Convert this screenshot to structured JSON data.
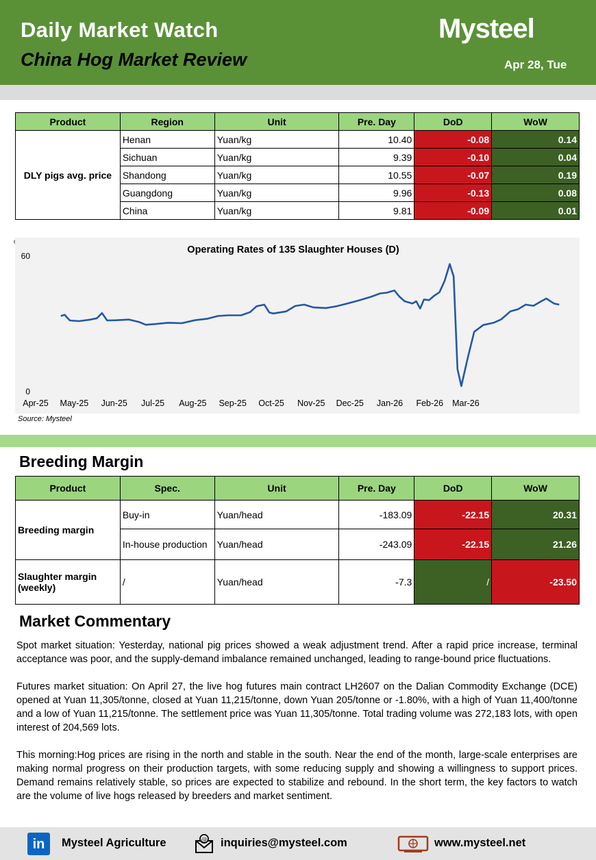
{
  "header": {
    "title": "Daily Market Watch",
    "subtitle": "China Hog Market Review",
    "brand": "Mysteel",
    "date": "Apr 28, Tue"
  },
  "price_table": {
    "headers": [
      "Product",
      "Region",
      "Unit",
      "Pre. Day",
      "DoD",
      "WoW"
    ],
    "product": "DLY pigs avg. price",
    "rows": [
      {
        "region": "Henan",
        "unit": "Yuan/kg",
        "pre": "10.40",
        "dod": "-0.08",
        "wow": "0.14"
      },
      {
        "region": "Sichuan",
        "unit": "Yuan/kg",
        "pre": "9.39",
        "dod": "-0.10",
        "wow": "0.04"
      },
      {
        "region": "Shandong",
        "unit": "Yuan/kg",
        "pre": "10.55",
        "dod": "-0.07",
        "wow": "0.19"
      },
      {
        "region": "Guangdong",
        "unit": "Yuan/kg",
        "pre": "9.96",
        "dod": "-0.13",
        "wow": "0.08"
      },
      {
        "region": "China",
        "unit": "Yuan/kg",
        "pre": "9.81",
        "dod": "-0.09",
        "wow": "0.01"
      }
    ]
  },
  "chart_data": {
    "type": "line",
    "title": "Operating Rates of 135 Slaughter Houses (D)",
    "ylabel": "%",
    "ylim": [
      0,
      60
    ],
    "yticks": [
      "0",
      "60"
    ],
    "xticks": [
      "Apr-25",
      "May-25",
      "Jun-25",
      "Jul-25",
      "Aug-25",
      "Sep-25",
      "Oct-25",
      "Nov-25",
      "Dec-25",
      "Jan-26",
      "Feb-26",
      "Mar-26"
    ],
    "series": [
      {
        "color": "#2458a6",
        "points": [
          [
            "2025-04-28",
            33.5
          ],
          [
            "2025-05-01",
            34
          ],
          [
            "2025-05-05",
            31.5
          ],
          [
            "2025-05-12",
            31.2
          ],
          [
            "2025-05-20",
            31.8
          ],
          [
            "2025-05-26",
            32.5
          ],
          [
            "2025-05-30",
            34.8
          ],
          [
            "2025-06-03",
            31.5
          ],
          [
            "2025-06-10",
            31.6
          ],
          [
            "2025-06-20",
            31.9
          ],
          [
            "2025-06-28",
            30.8
          ],
          [
            "2025-07-03",
            29.6
          ],
          [
            "2025-07-10",
            29.9
          ],
          [
            "2025-07-20",
            30.5
          ],
          [
            "2025-07-31",
            30.3
          ],
          [
            "2025-08-10",
            31.6
          ],
          [
            "2025-08-20",
            32.3
          ],
          [
            "2025-08-28",
            33.5
          ],
          [
            "2025-09-05",
            33.8
          ],
          [
            "2025-09-15",
            33.8
          ],
          [
            "2025-09-22",
            35.2
          ],
          [
            "2025-09-27",
            37.8
          ],
          [
            "2025-10-03",
            38.5
          ],
          [
            "2025-10-07",
            35.0
          ],
          [
            "2025-10-10",
            34.6
          ],
          [
            "2025-10-20",
            35.5
          ],
          [
            "2025-10-27",
            37.9
          ],
          [
            "2025-11-03",
            38.5
          ],
          [
            "2025-11-10",
            37.3
          ],
          [
            "2025-11-20",
            37.0
          ],
          [
            "2025-11-28",
            37.8
          ],
          [
            "2025-12-05",
            38.8
          ],
          [
            "2025-12-15",
            40.3
          ],
          [
            "2025-12-25",
            42.0
          ],
          [
            "2026-01-01",
            43.5
          ],
          [
            "2026-01-06",
            43.8
          ],
          [
            "2026-01-12",
            44.8
          ],
          [
            "2026-01-16",
            42.0
          ],
          [
            "2026-01-20",
            40.0
          ],
          [
            "2026-01-26",
            39.0
          ],
          [
            "2026-01-29",
            40.0
          ],
          [
            "2026-02-01",
            36.8
          ],
          [
            "2026-02-04",
            40.8
          ],
          [
            "2026-02-08",
            40.5
          ],
          [
            "2026-02-12",
            42.5
          ],
          [
            "2026-02-16",
            44.0
          ],
          [
            "2026-02-20",
            49.0
          ],
          [
            "2026-02-24",
            56.5
          ],
          [
            "2026-02-27",
            51.0
          ],
          [
            "2026-03-02",
            10.0
          ],
          [
            "2026-03-05",
            2.5
          ],
          [
            "2026-03-10",
            15.0
          ],
          [
            "2026-03-15",
            26.5
          ],
          [
            "2026-03-22",
            29.5
          ],
          [
            "2026-03-30",
            30.5
          ],
          [
            "2026-04-05",
            32.0
          ],
          [
            "2026-04-12",
            35.5
          ],
          [
            "2026-04-18",
            36.5
          ],
          [
            "2026-04-24",
            38.5
          ],
          [
            "2026-04-30",
            38.0
          ],
          [
            "2026-05-06",
            40.0
          ],
          [
            "2026-05-10",
            41.2
          ],
          [
            "2026-05-16",
            39.0
          ],
          [
            "2026-05-20",
            38.5
          ]
        ]
      }
    ]
  },
  "source": "Source: Mysteel",
  "breeding": {
    "title": "Breeding Margin",
    "headers": [
      "Product",
      "Spec.",
      "Unit",
      "Pre. Day",
      "DoD",
      "WoW"
    ],
    "product1": "Breeding margin",
    "rows1": [
      {
        "spec": "Buy-in",
        "unit": "Yuan/head",
        "pre": "-183.09",
        "dod": "-22.15",
        "wow": "20.31"
      },
      {
        "spec": "In-house production",
        "unit": "Yuan/head",
        "pre": "-243.09",
        "dod": "-22.15",
        "wow": "21.26"
      }
    ],
    "product2": "Slaughter margin (weekly)",
    "row2": {
      "spec": "/",
      "unit": "Yuan/head",
      "pre": "-7.3",
      "dod": "/",
      "wow": "-23.50"
    }
  },
  "commentary": {
    "title": "Market Commentary",
    "p1": "Spot market situation: Yesterday, national pig prices showed a weak adjustment trend. After a rapid price increase, terminal acceptance was poor, and the supply-demand imbalance remained unchanged, leading to range-bound price fluctuations.",
    "p2": "Futures market situation: On April 27, the live hog futures main contract LH2607 on the Dalian Commodity Exchange (DCE) opened at Yuan 11,305/tonne, closed at Yuan 11,215/tonne, down Yuan 205/tonne or -1.80%, with a high of Yuan 11,400/tonne and a low of Yuan 11,215/tonne. The settlement price was Yuan 11,305/tonne. Total trading volume was 272,183 lots, with open interest of 204,569 lots.",
    "p3": "This morning:Hog prices are rising in the north and stable in the south. Near the end of the month, large-scale enterprises are making normal progress on their production targets, with some reducing supply and showing a willingness to support prices. Demand remains relatively stable, so prices are expected to stabilize and rebound. In the short term, the key factors to watch are the volume of live hogs released by breeders and market sentiment."
  },
  "footer": {
    "linkedin": "Mysteel Agriculture",
    "email": "inquiries@mysteel.com",
    "web": "www.mysteel.net"
  }
}
